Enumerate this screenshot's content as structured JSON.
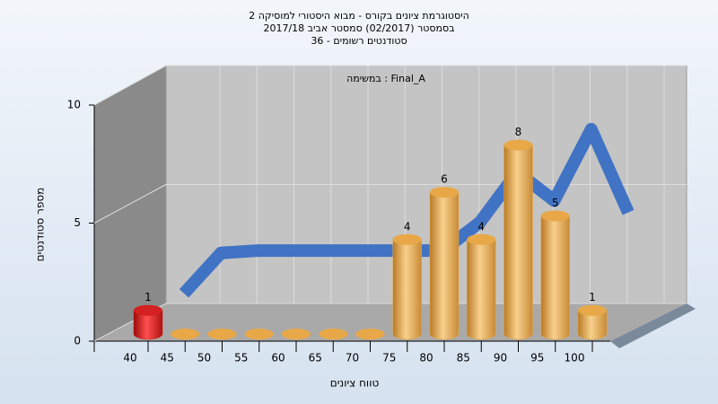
{
  "chart_data": {
    "type": "bar3d",
    "title": "היסטוגרמת ציונים בקורס - מבוא היסטורי למוסיקה 2",
    "subtitle": "בסמסטר  (02/2017)  סמסטר אביב 2017/18",
    "subtitle2": "סטודנטים רשומים - 36",
    "annotation": "במשימה : Final_A",
    "x_label": "טווח ציונים",
    "y_label": "מספר סטודנטים",
    "categories": [
      "40",
      "45",
      "50",
      "55",
      "60",
      "65",
      "70",
      "75",
      "80",
      "85",
      "90",
      "95",
      "100"
    ],
    "values": [
      1,
      0,
      0,
      0,
      0,
      0,
      0,
      4,
      6,
      4,
      8,
      5,
      1
    ],
    "colors": [
      "#d42020",
      "#e8a848",
      "#e8a848",
      "#e8a848",
      "#e8a848",
      "#e8a848",
      "#e8a848",
      "#e8a848",
      "#e8a848",
      "#e8a848",
      "#e8a848",
      "#e8a848",
      "#e8a848"
    ],
    "line_values": [
      0.8,
      2.5,
      2.6,
      2.6,
      2.6,
      2.6,
      2.6,
      2.6,
      3.8,
      5.9,
      4.7,
      7.7,
      4.2
    ],
    "line_color": "#3a6fc4",
    "ylim": [
      0,
      10
    ],
    "yticks": [
      0,
      5,
      10
    ],
    "grid": true
  }
}
